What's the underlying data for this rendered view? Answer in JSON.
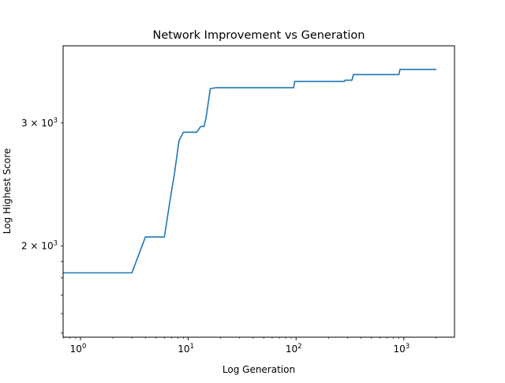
{
  "chart_data": {
    "type": "line",
    "title": "Network Improvement vs Generation",
    "xlabel": "Log Generation",
    "ylabel": "Log Highest Score",
    "xscale": "log",
    "yscale": "log",
    "xlim": [
      0.69,
      2950
    ],
    "ylim": [
      1480,
      3870
    ],
    "grid": false,
    "legend": "none",
    "line_color": "#1f77b4",
    "x_ticks": [
      {
        "value": 1,
        "base": "10",
        "exp": "0"
      },
      {
        "value": 10,
        "base": "10",
        "exp": "1"
      },
      {
        "value": 100,
        "base": "10",
        "exp": "2"
      },
      {
        "value": 1000,
        "base": "10",
        "exp": "3"
      }
    ],
    "y_ticks": [
      {
        "value": 2000,
        "coef": "2",
        "base": "10",
        "exp": "3"
      },
      {
        "value": 3000,
        "coef": "3",
        "base": "10",
        "exp": "3"
      }
    ],
    "series": [
      {
        "x": [
          0.69,
          3,
          4,
          6,
          6.7,
          7.5,
          8.2,
          9,
          12,
          13,
          14,
          14.6,
          15.2,
          16,
          18,
          95,
          97,
          280,
          285,
          330,
          340,
          900,
          920,
          2000
        ],
        "y": [
          1830,
          1830,
          2060,
          2060,
          2300,
          2560,
          2830,
          2910,
          2910,
          2965,
          2965,
          3050,
          3180,
          3360,
          3370,
          3370,
          3440,
          3440,
          3455,
          3455,
          3520,
          3520,
          3580,
          3580
        ]
      }
    ]
  }
}
